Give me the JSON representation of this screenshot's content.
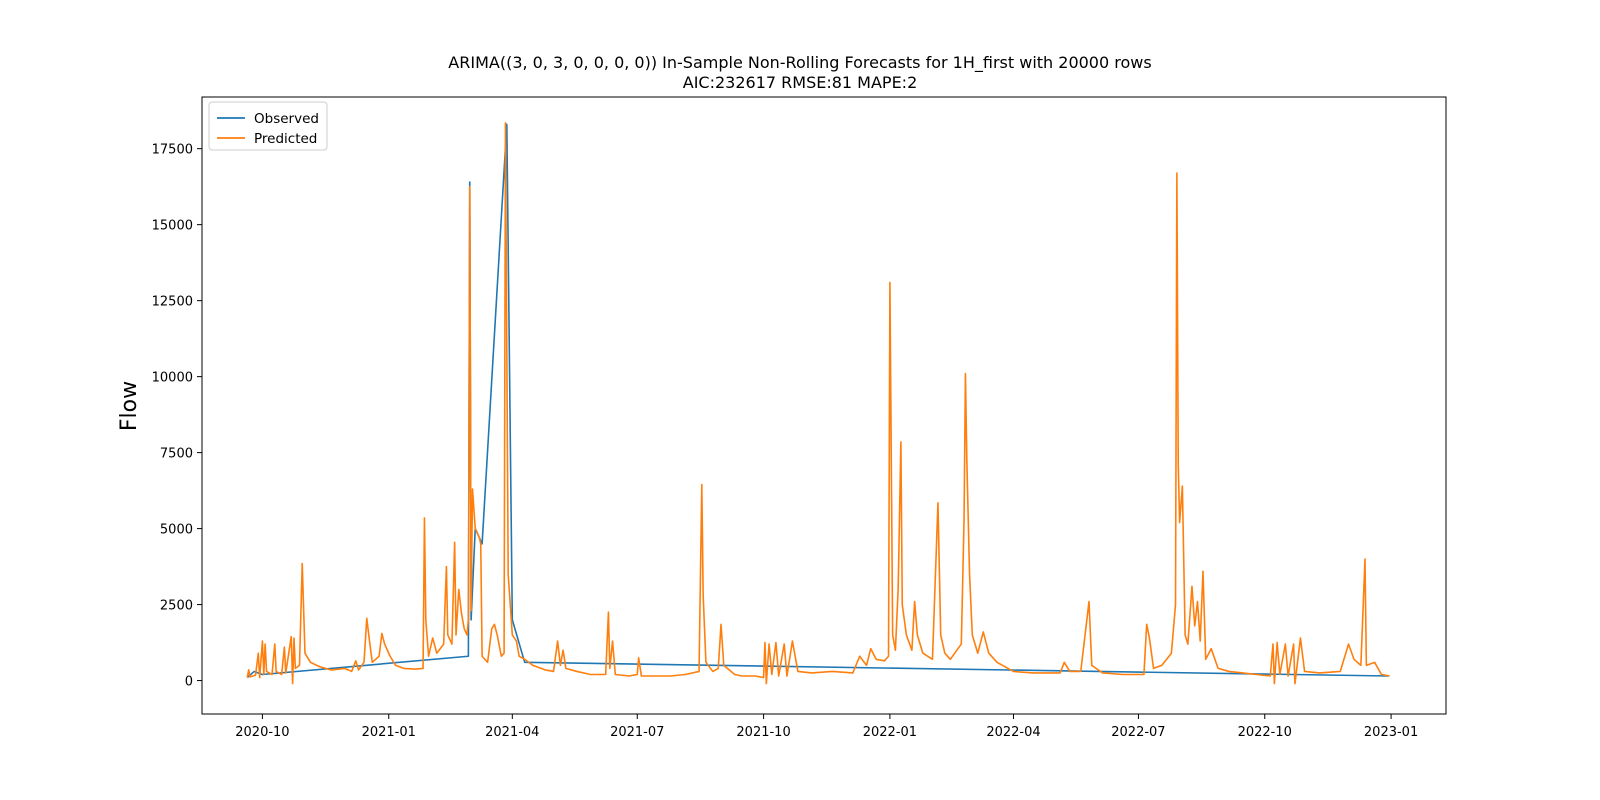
{
  "chart_data": {
    "type": "line",
    "title": "ARIMA((3, 0, 3, 0, 0, 0, 0)) In-Sample Non-Rolling Forecasts for 1H_first with 20000 rows",
    "subtitle": "AIC:232617 RMSE:81 MAPE:2",
    "xlabel": "",
    "ylabel": "Flow",
    "xlim": [
      "2020-08-18",
      "2023-02-10"
    ],
    "ylim": [
      -1100,
      19200
    ],
    "grid": false,
    "legend_position": "top-left",
    "x_ticks": [
      "2020-10",
      "2021-01",
      "2021-04",
      "2021-07",
      "2021-10",
      "2022-01",
      "2022-04",
      "2022-07",
      "2022-10",
      "2023-01"
    ],
    "y_ticks": [
      0,
      2500,
      5000,
      7500,
      10000,
      12500,
      15000,
      17500
    ],
    "series": [
      {
        "name": "Observed",
        "color": "#1f77b4",
        "points": [
          [
            "2020-09-20",
            100
          ],
          [
            "2020-09-25",
            300
          ],
          [
            "2020-10-01",
            200
          ],
          [
            "2021-02-28",
            800
          ],
          [
            "2021-03-01",
            16400
          ],
          [
            "2021-03-02",
            2000
          ],
          [
            "2021-03-05",
            5000
          ],
          [
            "2021-03-10",
            4500
          ],
          [
            "2021-03-28",
            18300
          ],
          [
            "2021-04-01",
            2000
          ],
          [
            "2021-04-10",
            600
          ],
          [
            "2022-12-30",
            150
          ]
        ]
      },
      {
        "name": "Predicted",
        "color": "#ff7f0e",
        "points": [
          [
            "2020-09-20",
            100
          ],
          [
            "2020-09-21",
            350
          ],
          [
            "2020-09-22",
            120
          ],
          [
            "2020-09-26",
            180
          ],
          [
            "2020-09-28",
            900
          ],
          [
            "2020-09-29",
            100
          ],
          [
            "2020-10-01",
            1300
          ],
          [
            "2020-10-02",
            200
          ],
          [
            "2020-10-03",
            1200
          ],
          [
            "2020-10-04",
            300
          ],
          [
            "2020-10-08",
            200
          ],
          [
            "2020-10-10",
            1200
          ],
          [
            "2020-10-11",
            300
          ],
          [
            "2020-10-15",
            200
          ],
          [
            "2020-10-17",
            1100
          ],
          [
            "2020-10-18",
            250
          ],
          [
            "2020-10-22",
            1450
          ],
          [
            "2020-10-23",
            -100
          ],
          [
            "2020-10-24",
            1400
          ],
          [
            "2020-10-25",
            400
          ],
          [
            "2020-10-28",
            500
          ],
          [
            "2020-10-30",
            3850
          ],
          [
            "2020-11-01",
            900
          ],
          [
            "2020-11-05",
            600
          ],
          [
            "2020-11-12",
            450
          ],
          [
            "2020-11-20",
            350
          ],
          [
            "2020-11-30",
            400
          ],
          [
            "2020-12-05",
            300
          ],
          [
            "2020-12-08",
            650
          ],
          [
            "2020-12-10",
            350
          ],
          [
            "2020-12-14",
            600
          ],
          [
            "2020-12-16",
            2050
          ],
          [
            "2020-12-18",
            1300
          ],
          [
            "2020-12-20",
            600
          ],
          [
            "2020-12-25",
            800
          ],
          [
            "2020-12-27",
            1550
          ],
          [
            "2020-12-29",
            1200
          ],
          [
            "2021-01-02",
            800
          ],
          [
            "2021-01-06",
            500
          ],
          [
            "2021-01-12",
            400
          ],
          [
            "2021-01-20",
            380
          ],
          [
            "2021-01-26",
            400
          ],
          [
            "2021-01-27",
            5350
          ],
          [
            "2021-01-28",
            2000
          ],
          [
            "2021-01-30",
            800
          ],
          [
            "2021-02-02",
            1400
          ],
          [
            "2021-02-05",
            900
          ],
          [
            "2021-02-10",
            1200
          ],
          [
            "2021-02-12",
            3750
          ],
          [
            "2021-02-13",
            1500
          ],
          [
            "2021-02-16",
            1200
          ],
          [
            "2021-02-18",
            4550
          ],
          [
            "2021-02-19",
            1500
          ],
          [
            "2021-02-21",
            3000
          ],
          [
            "2021-02-23",
            2200
          ],
          [
            "2021-02-25",
            1700
          ],
          [
            "2021-02-27",
            1500
          ],
          [
            "2021-02-28",
            2000
          ],
          [
            "2021-03-01",
            16250
          ],
          [
            "2021-03-02",
            2300
          ],
          [
            "2021-03-03",
            6300
          ],
          [
            "2021-03-05",
            5000
          ],
          [
            "2021-03-08",
            4700
          ],
          [
            "2021-03-09",
            4500
          ],
          [
            "2021-03-10",
            800
          ],
          [
            "2021-03-14",
            600
          ],
          [
            "2021-03-17",
            1700
          ],
          [
            "2021-03-19",
            1850
          ],
          [
            "2021-03-21",
            1500
          ],
          [
            "2021-03-24",
            800
          ],
          [
            "2021-03-26",
            900
          ],
          [
            "2021-03-27",
            18350
          ],
          [
            "2021-03-29",
            3500
          ],
          [
            "2021-04-01",
            1500
          ],
          [
            "2021-04-04",
            1300
          ],
          [
            "2021-04-06",
            800
          ],
          [
            "2021-04-10",
            700
          ],
          [
            "2021-04-16",
            500
          ],
          [
            "2021-04-25",
            350
          ],
          [
            "2021-05-01",
            300
          ],
          [
            "2021-05-04",
            1300
          ],
          [
            "2021-05-06",
            500
          ],
          [
            "2021-05-08",
            1000
          ],
          [
            "2021-05-10",
            400
          ],
          [
            "2021-05-18",
            300
          ],
          [
            "2021-05-28",
            200
          ],
          [
            "2021-06-08",
            200
          ],
          [
            "2021-06-10",
            2250
          ],
          [
            "2021-06-11",
            400
          ],
          [
            "2021-06-13",
            1300
          ],
          [
            "2021-06-15",
            200
          ],
          [
            "2021-06-25",
            150
          ],
          [
            "2021-07-01",
            200
          ],
          [
            "2021-07-02",
            750
          ],
          [
            "2021-07-04",
            150
          ],
          [
            "2021-07-15",
            150
          ],
          [
            "2021-07-25",
            150
          ],
          [
            "2021-08-05",
            200
          ],
          [
            "2021-08-15",
            300
          ],
          [
            "2021-08-17",
            6450
          ],
          [
            "2021-08-18",
            2800
          ],
          [
            "2021-08-20",
            600
          ],
          [
            "2021-08-25",
            300
          ],
          [
            "2021-08-29",
            400
          ],
          [
            "2021-08-31",
            1850
          ],
          [
            "2021-09-02",
            500
          ],
          [
            "2021-09-10",
            200
          ],
          [
            "2021-09-15",
            150
          ],
          [
            "2021-09-25",
            150
          ],
          [
            "2021-10-01",
            100
          ],
          [
            "2021-10-02",
            1250
          ],
          [
            "2021-10-03",
            -100
          ],
          [
            "2021-10-05",
            1200
          ],
          [
            "2021-10-07",
            200
          ],
          [
            "2021-10-10",
            1250
          ],
          [
            "2021-10-12",
            150
          ],
          [
            "2021-10-16",
            1200
          ],
          [
            "2021-10-18",
            150
          ],
          [
            "2021-10-22",
            1300
          ],
          [
            "2021-10-26",
            300
          ],
          [
            "2021-11-05",
            250
          ],
          [
            "2021-11-20",
            300
          ],
          [
            "2021-12-05",
            250
          ],
          [
            "2021-12-10",
            800
          ],
          [
            "2021-12-15",
            500
          ],
          [
            "2021-12-18",
            1050
          ],
          [
            "2021-12-22",
            700
          ],
          [
            "2021-12-28",
            650
          ],
          [
            "2021-12-31",
            800
          ],
          [
            "2022-01-01",
            13100
          ],
          [
            "2022-01-03",
            1500
          ],
          [
            "2022-01-05",
            1000
          ],
          [
            "2022-01-07",
            3000
          ],
          [
            "2022-01-09",
            7850
          ],
          [
            "2022-01-10",
            2500
          ],
          [
            "2022-01-13",
            1500
          ],
          [
            "2022-01-17",
            1000
          ],
          [
            "2022-01-19",
            2600
          ],
          [
            "2022-01-21",
            1500
          ],
          [
            "2022-01-25",
            900
          ],
          [
            "2022-02-01",
            700
          ],
          [
            "2022-02-05",
            5850
          ],
          [
            "2022-02-07",
            1500
          ],
          [
            "2022-02-10",
            900
          ],
          [
            "2022-02-14",
            700
          ],
          [
            "2022-02-22",
            1200
          ],
          [
            "2022-02-24",
            5300
          ],
          [
            "2022-02-25",
            10100
          ],
          [
            "2022-02-26",
            7300
          ],
          [
            "2022-02-28",
            3500
          ],
          [
            "2022-03-02",
            1500
          ],
          [
            "2022-03-06",
            900
          ],
          [
            "2022-03-10",
            1600
          ],
          [
            "2022-03-14",
            900
          ],
          [
            "2022-03-20",
            600
          ],
          [
            "2022-04-01",
            300
          ],
          [
            "2022-04-15",
            250
          ],
          [
            "2022-05-05",
            250
          ],
          [
            "2022-05-08",
            600
          ],
          [
            "2022-05-12",
            300
          ],
          [
            "2022-05-20",
            300
          ],
          [
            "2022-05-26",
            2600
          ],
          [
            "2022-05-28",
            500
          ],
          [
            "2022-06-05",
            250
          ],
          [
            "2022-06-20",
            200
          ],
          [
            "2022-07-05",
            200
          ],
          [
            "2022-07-07",
            1850
          ],
          [
            "2022-07-09",
            1400
          ],
          [
            "2022-07-12",
            400
          ],
          [
            "2022-07-18",
            500
          ],
          [
            "2022-07-25",
            900
          ],
          [
            "2022-07-28",
            2500
          ],
          [
            "2022-07-29",
            16700
          ],
          [
            "2022-07-30",
            7100
          ],
          [
            "2022-07-31",
            5200
          ],
          [
            "2022-08-02",
            6400
          ],
          [
            "2022-08-04",
            1500
          ],
          [
            "2022-08-06",
            1200
          ],
          [
            "2022-08-09",
            3100
          ],
          [
            "2022-08-11",
            1800
          ],
          [
            "2022-08-13",
            2600
          ],
          [
            "2022-08-15",
            1300
          ],
          [
            "2022-08-17",
            3600
          ],
          [
            "2022-08-19",
            700
          ],
          [
            "2022-08-23",
            1050
          ],
          [
            "2022-08-28",
            400
          ],
          [
            "2022-09-05",
            300
          ],
          [
            "2022-09-15",
            250
          ],
          [
            "2022-09-25",
            200
          ],
          [
            "2022-10-05",
            150
          ],
          [
            "2022-10-07",
            1200
          ],
          [
            "2022-10-08",
            -100
          ],
          [
            "2022-10-10",
            1250
          ],
          [
            "2022-10-12",
            200
          ],
          [
            "2022-10-16",
            1200
          ],
          [
            "2022-10-18",
            150
          ],
          [
            "2022-10-22",
            1200
          ],
          [
            "2022-10-23",
            -100
          ],
          [
            "2022-10-27",
            1400
          ],
          [
            "2022-10-30",
            300
          ],
          [
            "2022-11-10",
            250
          ],
          [
            "2022-11-25",
            300
          ],
          [
            "2022-12-01",
            1200
          ],
          [
            "2022-12-05",
            700
          ],
          [
            "2022-12-10",
            500
          ],
          [
            "2022-12-13",
            4000
          ],
          [
            "2022-12-14",
            500
          ],
          [
            "2022-12-20",
            600
          ],
          [
            "2022-12-25",
            200
          ],
          [
            "2022-12-31",
            150
          ]
        ]
      }
    ]
  }
}
